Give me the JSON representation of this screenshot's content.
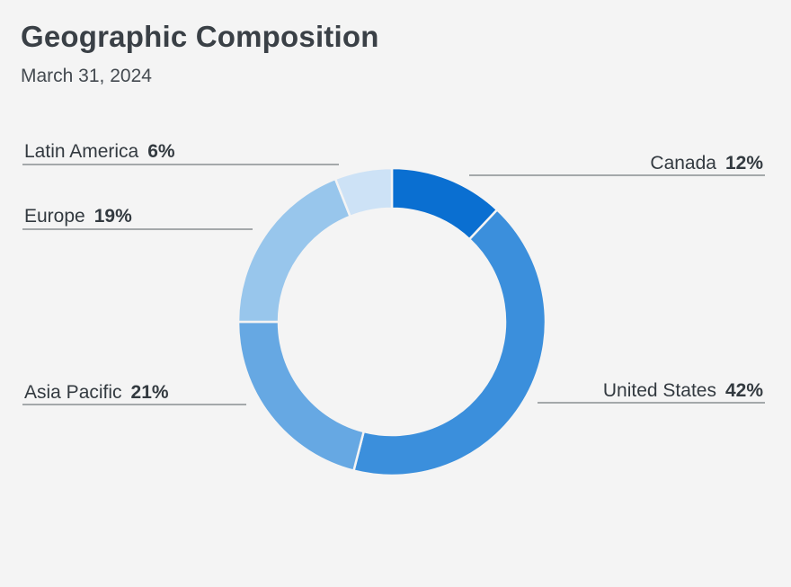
{
  "header": {
    "title": "Geographic Composition",
    "subtitle": "March 31, 2024"
  },
  "chart_data": {
    "type": "pie",
    "style": "donut",
    "title": "Geographic Composition",
    "subtitle": "March 31, 2024",
    "categories": [
      "Canada",
      "United States",
      "Asia Pacific",
      "Europe",
      "Latin America"
    ],
    "values": [
      12,
      42,
      21,
      19,
      6
    ],
    "labels": [
      "12%",
      "42%",
      "21%",
      "19%",
      "6%"
    ],
    "colors": [
      "#0a6fd1",
      "#3b8fdc",
      "#66a8e3",
      "#98c6ec",
      "#cde2f6"
    ],
    "start_angle": "12 o'clock",
    "direction": "clockwise",
    "legend": "none"
  }
}
